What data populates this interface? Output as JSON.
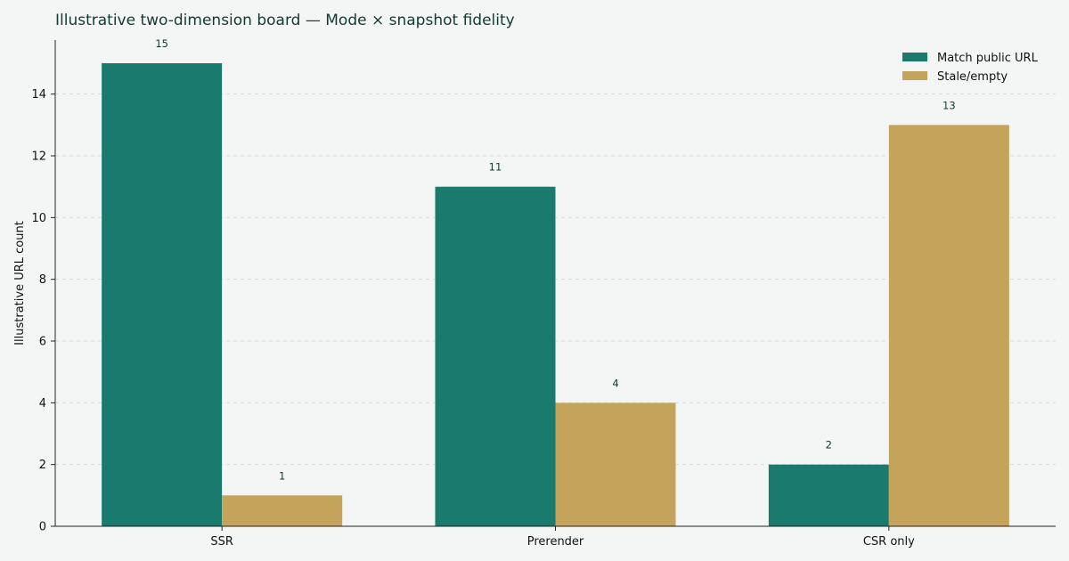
{
  "chart_data": {
    "type": "bar",
    "title": "Illustrative two-dimension board — Mode × snapshot fidelity",
    "xlabel": "",
    "ylabel": "Illustrative URL count",
    "categories": [
      "SSR",
      "Prerender",
      "CSR only"
    ],
    "series": [
      {
        "name": "Match public URL",
        "values": [
          15,
          11,
          2
        ],
        "color": "#1b7a6e"
      },
      {
        "name": "Stale/empty",
        "values": [
          1,
          4,
          13
        ],
        "color": "#c4a35b"
      }
    ],
    "ylim": [
      0,
      15.75
    ],
    "yticks": [
      0,
      2,
      4,
      6,
      8,
      10,
      12,
      14
    ],
    "grid": true,
    "legend": "top-right",
    "data_labels": true
  }
}
